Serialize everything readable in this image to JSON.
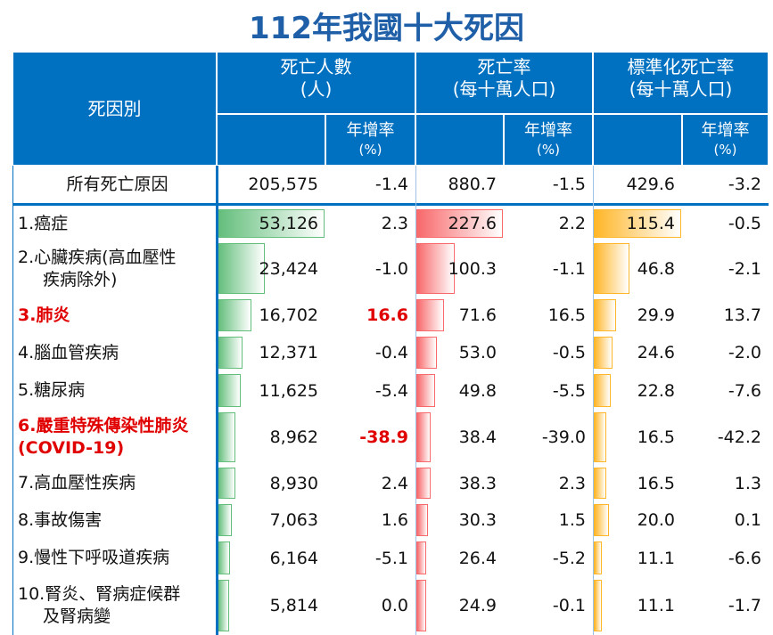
{
  "title": "112年我國十大死因",
  "header": {
    "cause": "死因別",
    "groups": [
      {
        "title": "死亡人數",
        "unit": "(人)",
        "bar_color": "#63be7b"
      },
      {
        "title": "死亡率",
        "unit": "(每十萬人口)",
        "bar_color": "#f8696b"
      },
      {
        "title": "標準化死亡率",
        "unit": "(每十萬人口)",
        "bar_color": "#ffb628"
      }
    ],
    "growth": "年增率",
    "growth_unit": "(%)"
  },
  "total": {
    "cause": [
      "所有死亡原因"
    ],
    "cells": [
      {
        "value": 205575,
        "label": "205,575"
      },
      -1.4,
      880.7,
      -1.5,
      429.6,
      -3.2
    ]
  },
  "rows": [
    {
      "cause": [
        "1.癌症"
      ],
      "cells": [
        {
          "value": 53126,
          "label": "53,126"
        },
        2.3,
        227.6,
        2.2,
        115.4,
        -0.5
      ]
    },
    {
      "cause": [
        "2.心臟疾病(高血壓性",
        "疾病除外)"
      ],
      "cells": [
        {
          "value": 23424,
          "label": "23,424"
        },
        {
          "value": -1,
          "label": "-1.0"
        },
        100.3,
        -1.1,
        46.8,
        -2.1
      ]
    },
    {
      "cause": [
        "3.肺炎"
      ],
      "emphasis": true,
      "cells": [
        {
          "value": 16702,
          "label": "16,702"
        },
        16.6,
        71.6,
        16.5,
        29.9,
        13.7
      ]
    },
    {
      "cause": [
        "4.腦血管疾病"
      ],
      "cells": [
        {
          "value": 12371,
          "label": "12,371"
        },
        -0.4,
        {
          "value": 53,
          "label": "53.0"
        },
        -0.5,
        24.6,
        {
          "value": -2,
          "label": "-2.0"
        }
      ]
    },
    {
      "cause": [
        "5.糖尿病"
      ],
      "cells": [
        {
          "value": 11625,
          "label": "11,625"
        },
        -5.4,
        49.8,
        -5.5,
        22.8,
        -7.6
      ]
    },
    {
      "cause": [
        "6.嚴重特殊傳染性肺炎",
        "(COVID-19)"
      ],
      "emphasis": true,
      "cells": [
        {
          "value": 8962,
          "label": "8,962"
        },
        -38.9,
        38.4,
        {
          "value": -39,
          "label": "-39.0"
        },
        16.5,
        -42.2
      ]
    },
    {
      "cause": [
        "7.高血壓性疾病"
      ],
      "cells": [
        {
          "value": 8930,
          "label": "8,930"
        },
        2.4,
        38.3,
        2.3,
        16.5,
        1.3
      ]
    },
    {
      "cause": [
        "8.事故傷害"
      ],
      "cells": [
        {
          "value": 7063,
          "label": "7,063"
        },
        1.6,
        30.3,
        1.5,
        {
          "value": 20,
          "label": "20.0"
        },
        0.1
      ]
    },
    {
      "cause": [
        "9.慢性下呼吸道疾病"
      ],
      "cells": [
        {
          "value": 6164,
          "label": "6,164"
        },
        -5.1,
        26.4,
        -5.2,
        11.1,
        -6.6
      ]
    },
    {
      "cause": [
        "10.腎炎、腎病症候群",
        "及腎病變"
      ],
      "cells": [
        {
          "value": 5814,
          "label": "5,814"
        },
        {
          "value": 0,
          "label": "0.0"
        },
        24.9,
        -0.1,
        11.1,
        -1.7
      ]
    }
  ]
}
